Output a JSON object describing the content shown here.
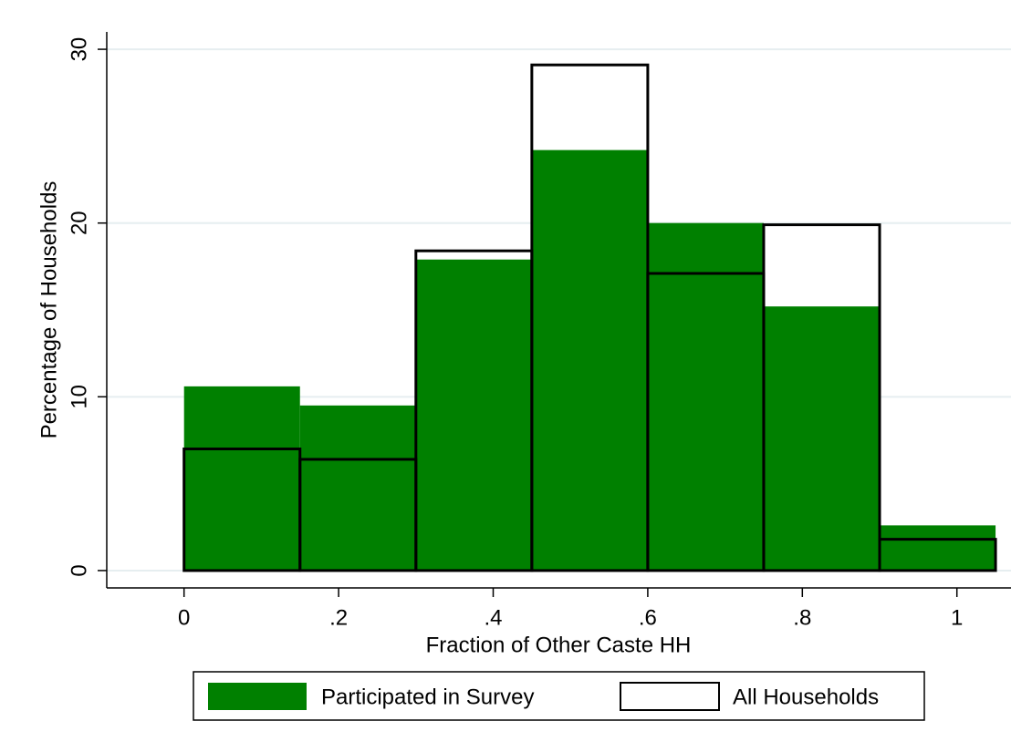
{
  "chart_data": {
    "type": "histogram",
    "x_label": "Fraction of Other Caste HH",
    "y_label": "Percentage of Households",
    "bins": [
      0,
      0.15,
      0.3,
      0.45,
      0.6,
      0.75,
      0.9,
      1.05
    ],
    "series": [
      {
        "name": "Participated in Survey",
        "color": "#008000",
        "values": [
          10.6,
          9.5,
          17.9,
          24.2,
          20.0,
          15.2,
          2.6
        ]
      },
      {
        "name": "All Households",
        "color": "#000000",
        "values": [
          7.0,
          6.4,
          18.4,
          29.1,
          17.1,
          19.9,
          1.8
        ]
      }
    ],
    "xlim": [
      -0.1,
      1.07
    ],
    "ylim": [
      -1,
      31
    ],
    "xticks": [
      0,
      {
        "value": 0.2,
        "label": ".2"
      },
      {
        "value": 0.4,
        "label": ".4"
      },
      {
        "value": 0.6,
        "label": ".6"
      },
      {
        "value": 0.8,
        "label": ".8"
      },
      1
    ],
    "yticks": [
      0,
      10,
      20,
      30
    ],
    "grid": true
  }
}
